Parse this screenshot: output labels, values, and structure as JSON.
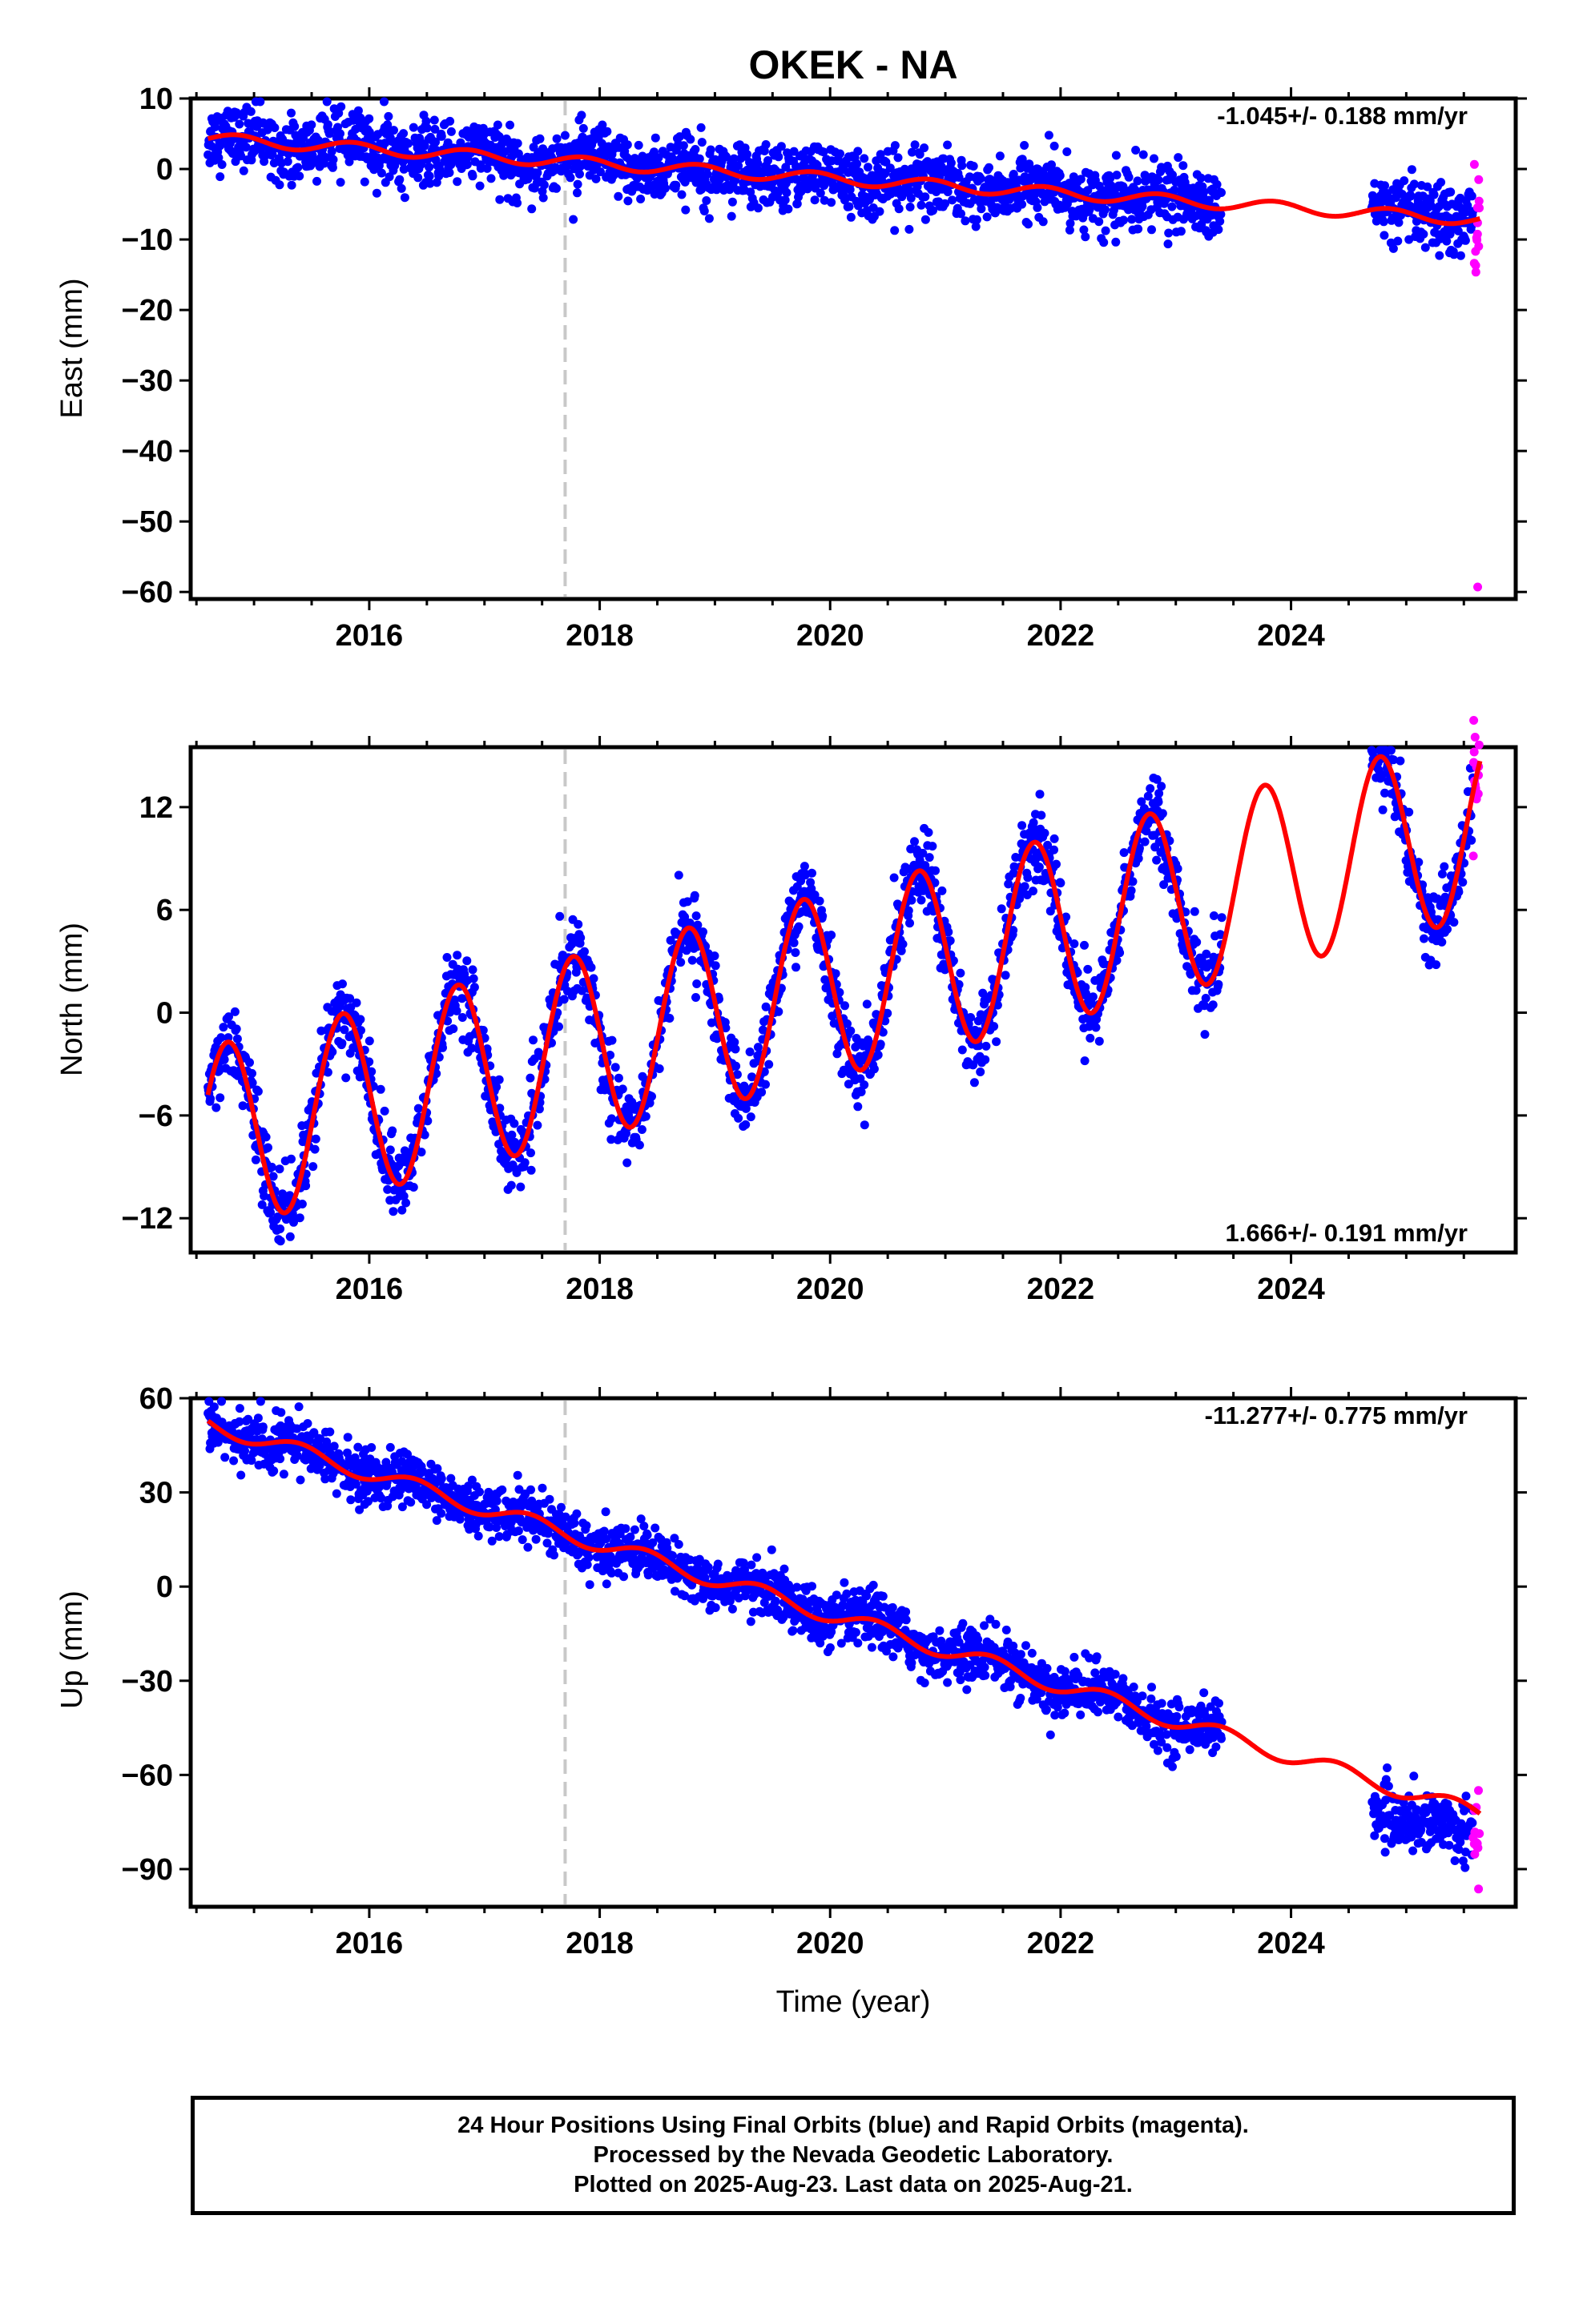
{
  "title": "OKEK - NA",
  "colors": {
    "final_orbits": "#0000ff",
    "rapid_orbits": "#ff00ff",
    "model": "#ff0000",
    "event_line": "#c8c8c8",
    "frame": "#000000"
  },
  "caption": {
    "line1": "24 Hour Positions Using Final Orbits (blue) and Rapid Orbits (magenta).",
    "line2": "Processed by the Nevada Geodetic Laboratory.",
    "line3": "Plotted on 2025-Aug-23. Last data on 2025-Aug-21."
  },
  "chart_data": [
    {
      "type": "scatter",
      "ylabel": "East (mm)",
      "xlabel": "",
      "xlim": [
        2014.45,
        2025.95
      ],
      "ylim": [
        -61,
        10
      ],
      "yticks": [
        10,
        0,
        -10,
        -20,
        -30,
        -40,
        -50,
        -60
      ],
      "xticks": [
        2016,
        2018,
        2020,
        2022,
        2024
      ],
      "event_line_x": 2017.7,
      "rate_label": "-1.045+/- 0.188 mm/yr",
      "rate_label_position": "top-right",
      "final_data_ranges": [
        [
          2014.6,
          2023.4
        ],
        [
          2024.7,
          2025.58
        ]
      ],
      "rapid_data_range": [
        2025.58,
        2025.64
      ],
      "rapid_outlier": {
        "x": 2025.62,
        "y": -59.3
      },
      "model": {
        "trend": {
          "ref_year": 2014.6,
          "offset": 4.3,
          "rate": -1.045
        },
        "annual": {
          "amplitude": 0.8,
          "phase_year": 0.6
        }
      },
      "scatter": 2.2
    },
    {
      "type": "scatter",
      "ylabel": "North (mm)",
      "xlabel": "",
      "xlim": [
        2014.45,
        2025.95
      ],
      "ylim": [
        -14,
        15.5
      ],
      "yticks": [
        12,
        6,
        0,
        -6,
        -12
      ],
      "xticks": [
        2016,
        2018,
        2020,
        2022,
        2024
      ],
      "event_line_x": 2017.7,
      "rate_label": "1.666+/- 0.191 mm/yr",
      "rate_label_position": "bottom-right",
      "final_data_ranges": [
        [
          2014.6,
          2023.4
        ],
        [
          2024.7,
          2025.58
        ]
      ],
      "rapid_data_range": [
        2025.58,
        2025.64
      ],
      "model": {
        "trend": {
          "ref_year": 2014.6,
          "offset": -7.4,
          "rate": 1.666
        },
        "annual": {
          "amplitude": 5.4,
          "phase_year": 0.52
        }
      },
      "scatter": 1.1
    },
    {
      "type": "scatter",
      "ylabel": "Up (mm)",
      "xlabel": "Time (year)",
      "xlim": [
        2014.45,
        2025.95
      ],
      "ylim": [
        -102,
        60
      ],
      "yticks": [
        60,
        30,
        0,
        -30,
        -60,
        -90
      ],
      "xticks": [
        2016,
        2018,
        2020,
        2022,
        2024
      ],
      "event_line_x": 2017.7,
      "rate_label": "-11.277+/- 0.775 mm/yr",
      "rate_label_position": "top-right",
      "final_data_ranges": [
        [
          2014.6,
          2023.4
        ],
        [
          2024.7,
          2025.58
        ]
      ],
      "final_offset_after_gap": -8,
      "rapid_data_range": [
        2025.58,
        2025.64
      ],
      "model": {
        "trend": {
          "ref_year": 2014.6,
          "offset": 52,
          "rate": -11.277
        },
        "annual": {
          "amplitude": 2.6,
          "phase_year": 0.15
        }
      },
      "scatter": 4.2
    }
  ]
}
